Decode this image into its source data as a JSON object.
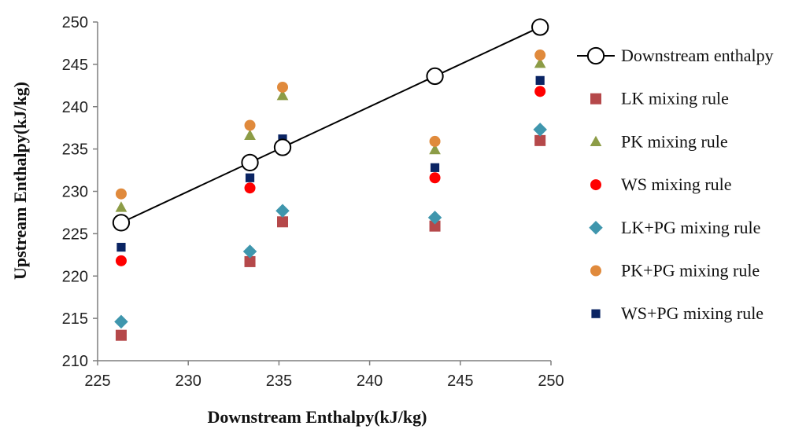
{
  "chart_data": {
    "type": "scatter",
    "title": "",
    "xlabel": "Downstream Enthalpy(kJ/kg)",
    "ylabel": "Upstream Enthalpy(kJ/kg)",
    "xlim": [
      225,
      250
    ],
    "ylim": [
      210,
      250
    ],
    "xticks": [
      225,
      230,
      235,
      240,
      245,
      250
    ],
    "yticks": [
      210,
      215,
      220,
      225,
      230,
      235,
      240,
      245,
      250
    ],
    "grid": false,
    "legend_position": "right",
    "x": [
      226.3,
      233.4,
      235.2,
      243.6,
      249.4
    ],
    "series": [
      {
        "name": "Downstream enthalpy",
        "marker": "open-circle-line",
        "color": "#000000",
        "values": [
          226.3,
          233.4,
          235.2,
          243.6,
          249.4
        ]
      },
      {
        "name": "LK mixing rule",
        "marker": "square",
        "color": "#b5484a",
        "values": [
          213.0,
          221.7,
          226.4,
          225.9,
          236.0
        ]
      },
      {
        "name": "PK mixing rule",
        "marker": "triangle",
        "color": "#8c9c46",
        "values": [
          228.1,
          236.6,
          241.3,
          234.9,
          245.1
        ]
      },
      {
        "name": "WS mixing rule",
        "marker": "circle",
        "color": "#ff0000",
        "values": [
          221.8,
          230.4,
          235.1,
          231.6,
          241.8
        ]
      },
      {
        "name": "LK+PG mixing rule",
        "marker": "diamond",
        "color": "#3f96ad",
        "values": [
          214.6,
          222.9,
          227.7,
          226.9,
          237.3
        ]
      },
      {
        "name": "PK+PG mixing rule",
        "marker": "circle",
        "color": "#e08a3c",
        "values": [
          229.7,
          237.8,
          242.3,
          235.9,
          246.1
        ]
      },
      {
        "name": "WS+PG mixing rule",
        "marker": "small-square",
        "color": "#0a2463",
        "values": [
          223.4,
          231.6,
          236.2,
          232.8,
          243.1
        ]
      }
    ]
  }
}
